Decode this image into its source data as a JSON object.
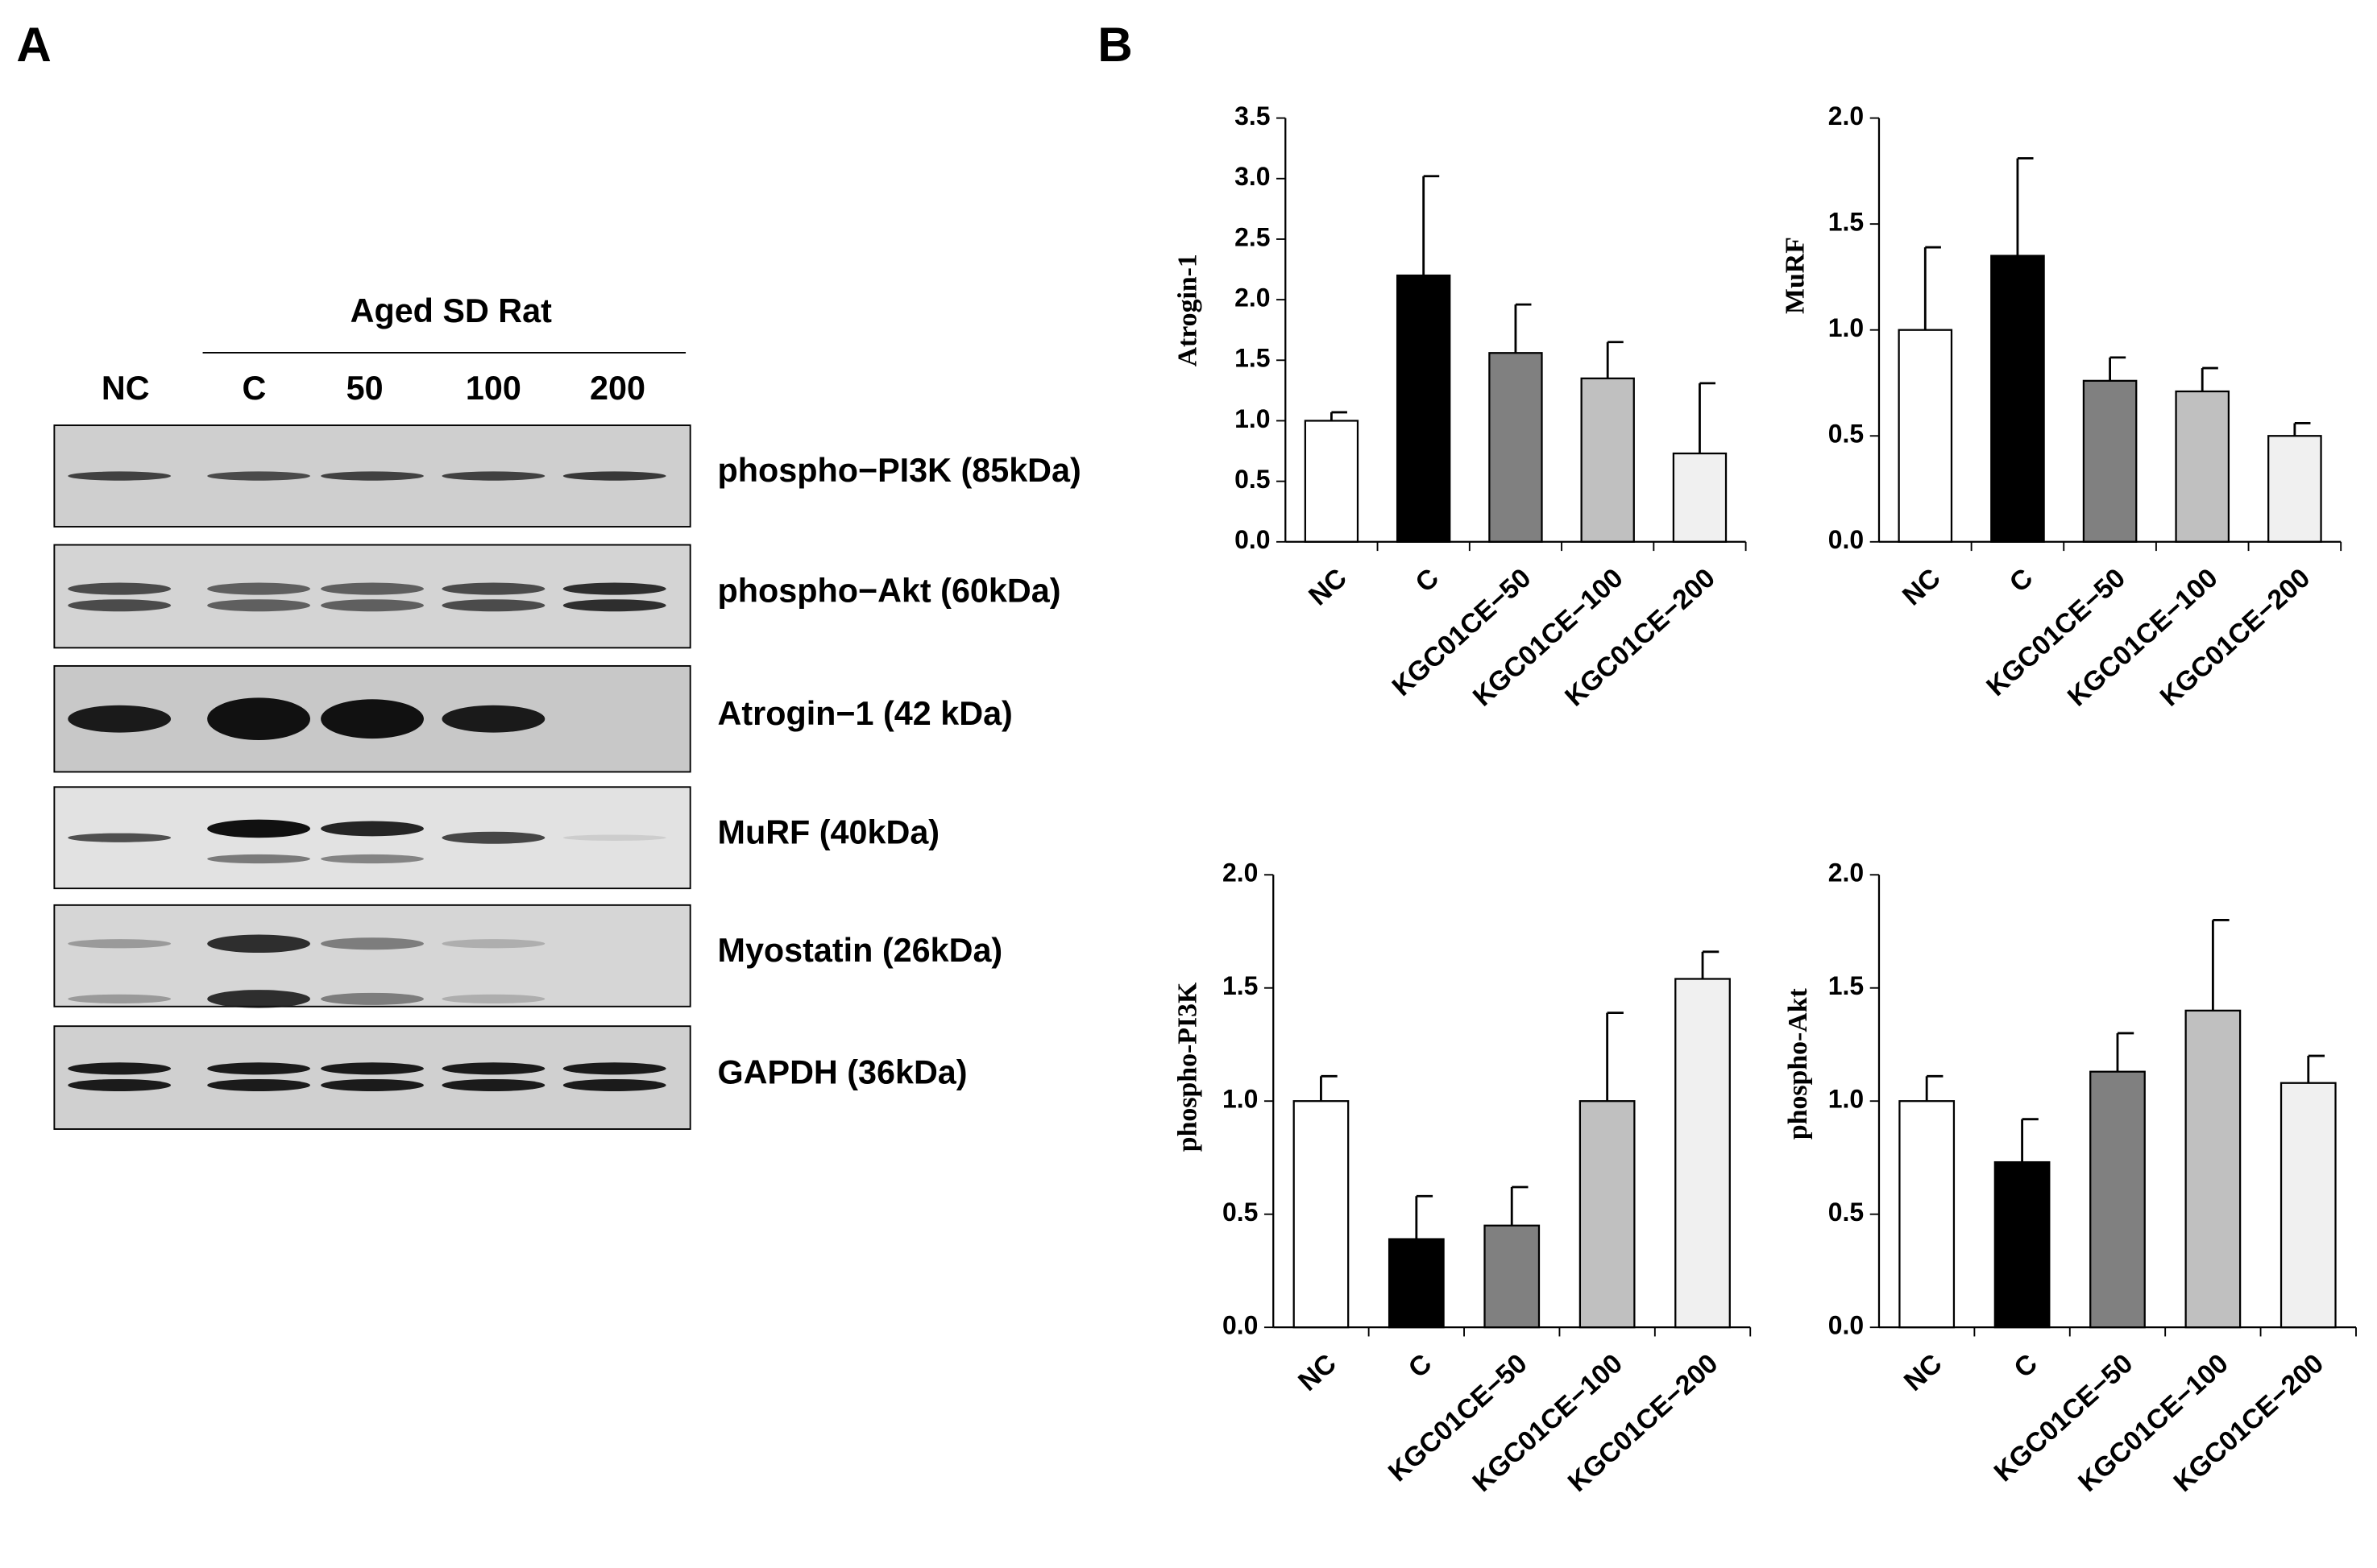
{
  "panel_a": {
    "label": "A",
    "group": "Aged SD Rat",
    "lanes": [
      "NC",
      "C",
      "50",
      "100",
      "200"
    ],
    "blots": [
      "phospho−PI3K (85kDa)",
      "phospho−Akt (60kDa)",
      "Atrogin−1  (42 kDa)",
      "MuRF (40kDa)",
      "Myostatin (26kDa)",
      "GAPDH (36kDa)"
    ]
  },
  "panel_b": {
    "label": "B"
  },
  "chart_data": [
    {
      "type": "bar",
      "y_label": "Atrogin-1",
      "categories": [
        "NC",
        "C",
        "KGC01CE−50",
        "KGC01CE−100",
        "KGC01CE−200"
      ],
      "values": [
        1.0,
        2.2,
        1.56,
        1.35,
        0.73
      ],
      "errors": [
        0.07,
        0.82,
        0.4,
        0.3,
        0.58
      ],
      "colors": [
        "#ffffff",
        "#000000",
        "#808080",
        "#c0c0c0",
        "#f0f0f0"
      ],
      "ylim": [
        0,
        3.5
      ],
      "yticks": [
        {
          "value": 0,
          "label": "0.0"
        },
        {
          "value": 0.5,
          "label": "0.5"
        },
        {
          "value": 1,
          "label": "1.0"
        },
        {
          "value": 1.5,
          "label": "1.5"
        },
        {
          "value": 2,
          "label": "2.0"
        },
        {
          "value": 2.5,
          "label": "2.5"
        },
        {
          "value": 3,
          "label": "3.0"
        },
        {
          "value": 3.5,
          "label": "3.5"
        }
      ]
    },
    {
      "type": "bar",
      "y_label": "MuRF",
      "categories": [
        "NC",
        "C",
        "KGC01CE−50",
        "KGC01CE−100",
        "KGC01CE−200"
      ],
      "values": [
        1.0,
        1.35,
        0.76,
        0.71,
        0.5
      ],
      "errors": [
        0.39,
        0.46,
        0.11,
        0.11,
        0.06
      ],
      "colors": [
        "#ffffff",
        "#000000",
        "#808080",
        "#c0c0c0",
        "#f0f0f0"
      ],
      "ylim": [
        0,
        2
      ],
      "yticks": [
        {
          "value": 0,
          "label": "0.0"
        },
        {
          "value": 0.5,
          "label": "0.5"
        },
        {
          "value": 1,
          "label": "1.0"
        },
        {
          "value": 1.5,
          "label": "1.5"
        },
        {
          "value": 2,
          "label": "2.0"
        }
      ]
    },
    {
      "type": "bar",
      "y_label": "phospho-PI3K",
      "categories": [
        "NC",
        "C",
        "KGC01CE−50",
        "KGC01CE−100",
        "KGC01CE−200"
      ],
      "values": [
        1.0,
        0.39,
        0.45,
        1.0,
        1.54
      ],
      "errors": [
        0.11,
        0.19,
        0.17,
        0.39,
        0.12
      ],
      "colors": [
        "#ffffff",
        "#000000",
        "#808080",
        "#c0c0c0",
        "#f0f0f0"
      ],
      "ylim": [
        0,
        2
      ],
      "yticks": [
        {
          "value": 0,
          "label": "0.0"
        },
        {
          "value": 0.5,
          "label": "0.5"
        },
        {
          "value": 1,
          "label": "1.0"
        },
        {
          "value": 1.5,
          "label": "1.5"
        },
        {
          "value": 2,
          "label": "2.0"
        }
      ]
    },
    {
      "type": "bar",
      "y_label": "phospho-Akt",
      "categories": [
        "NC",
        "C",
        "KGC01CE−50",
        "KGC01CE−100",
        "KGC01CE−200"
      ],
      "values": [
        1.0,
        0.73,
        1.13,
        1.4,
        1.08
      ],
      "errors": [
        0.11,
        0.19,
        0.17,
        0.4,
        0.12
      ],
      "colors": [
        "#ffffff",
        "#000000",
        "#808080",
        "#c0c0c0",
        "#f0f0f0"
      ],
      "ylim": [
        0,
        2
      ],
      "yticks": [
        {
          "value": 0,
          "label": "0.0"
        },
        {
          "value": 0.5,
          "label": "0.5"
        },
        {
          "value": 1,
          "label": "1.0"
        },
        {
          "value": 1.5,
          "label": "1.5"
        },
        {
          "value": 2,
          "label": "2.0"
        }
      ]
    }
  ]
}
